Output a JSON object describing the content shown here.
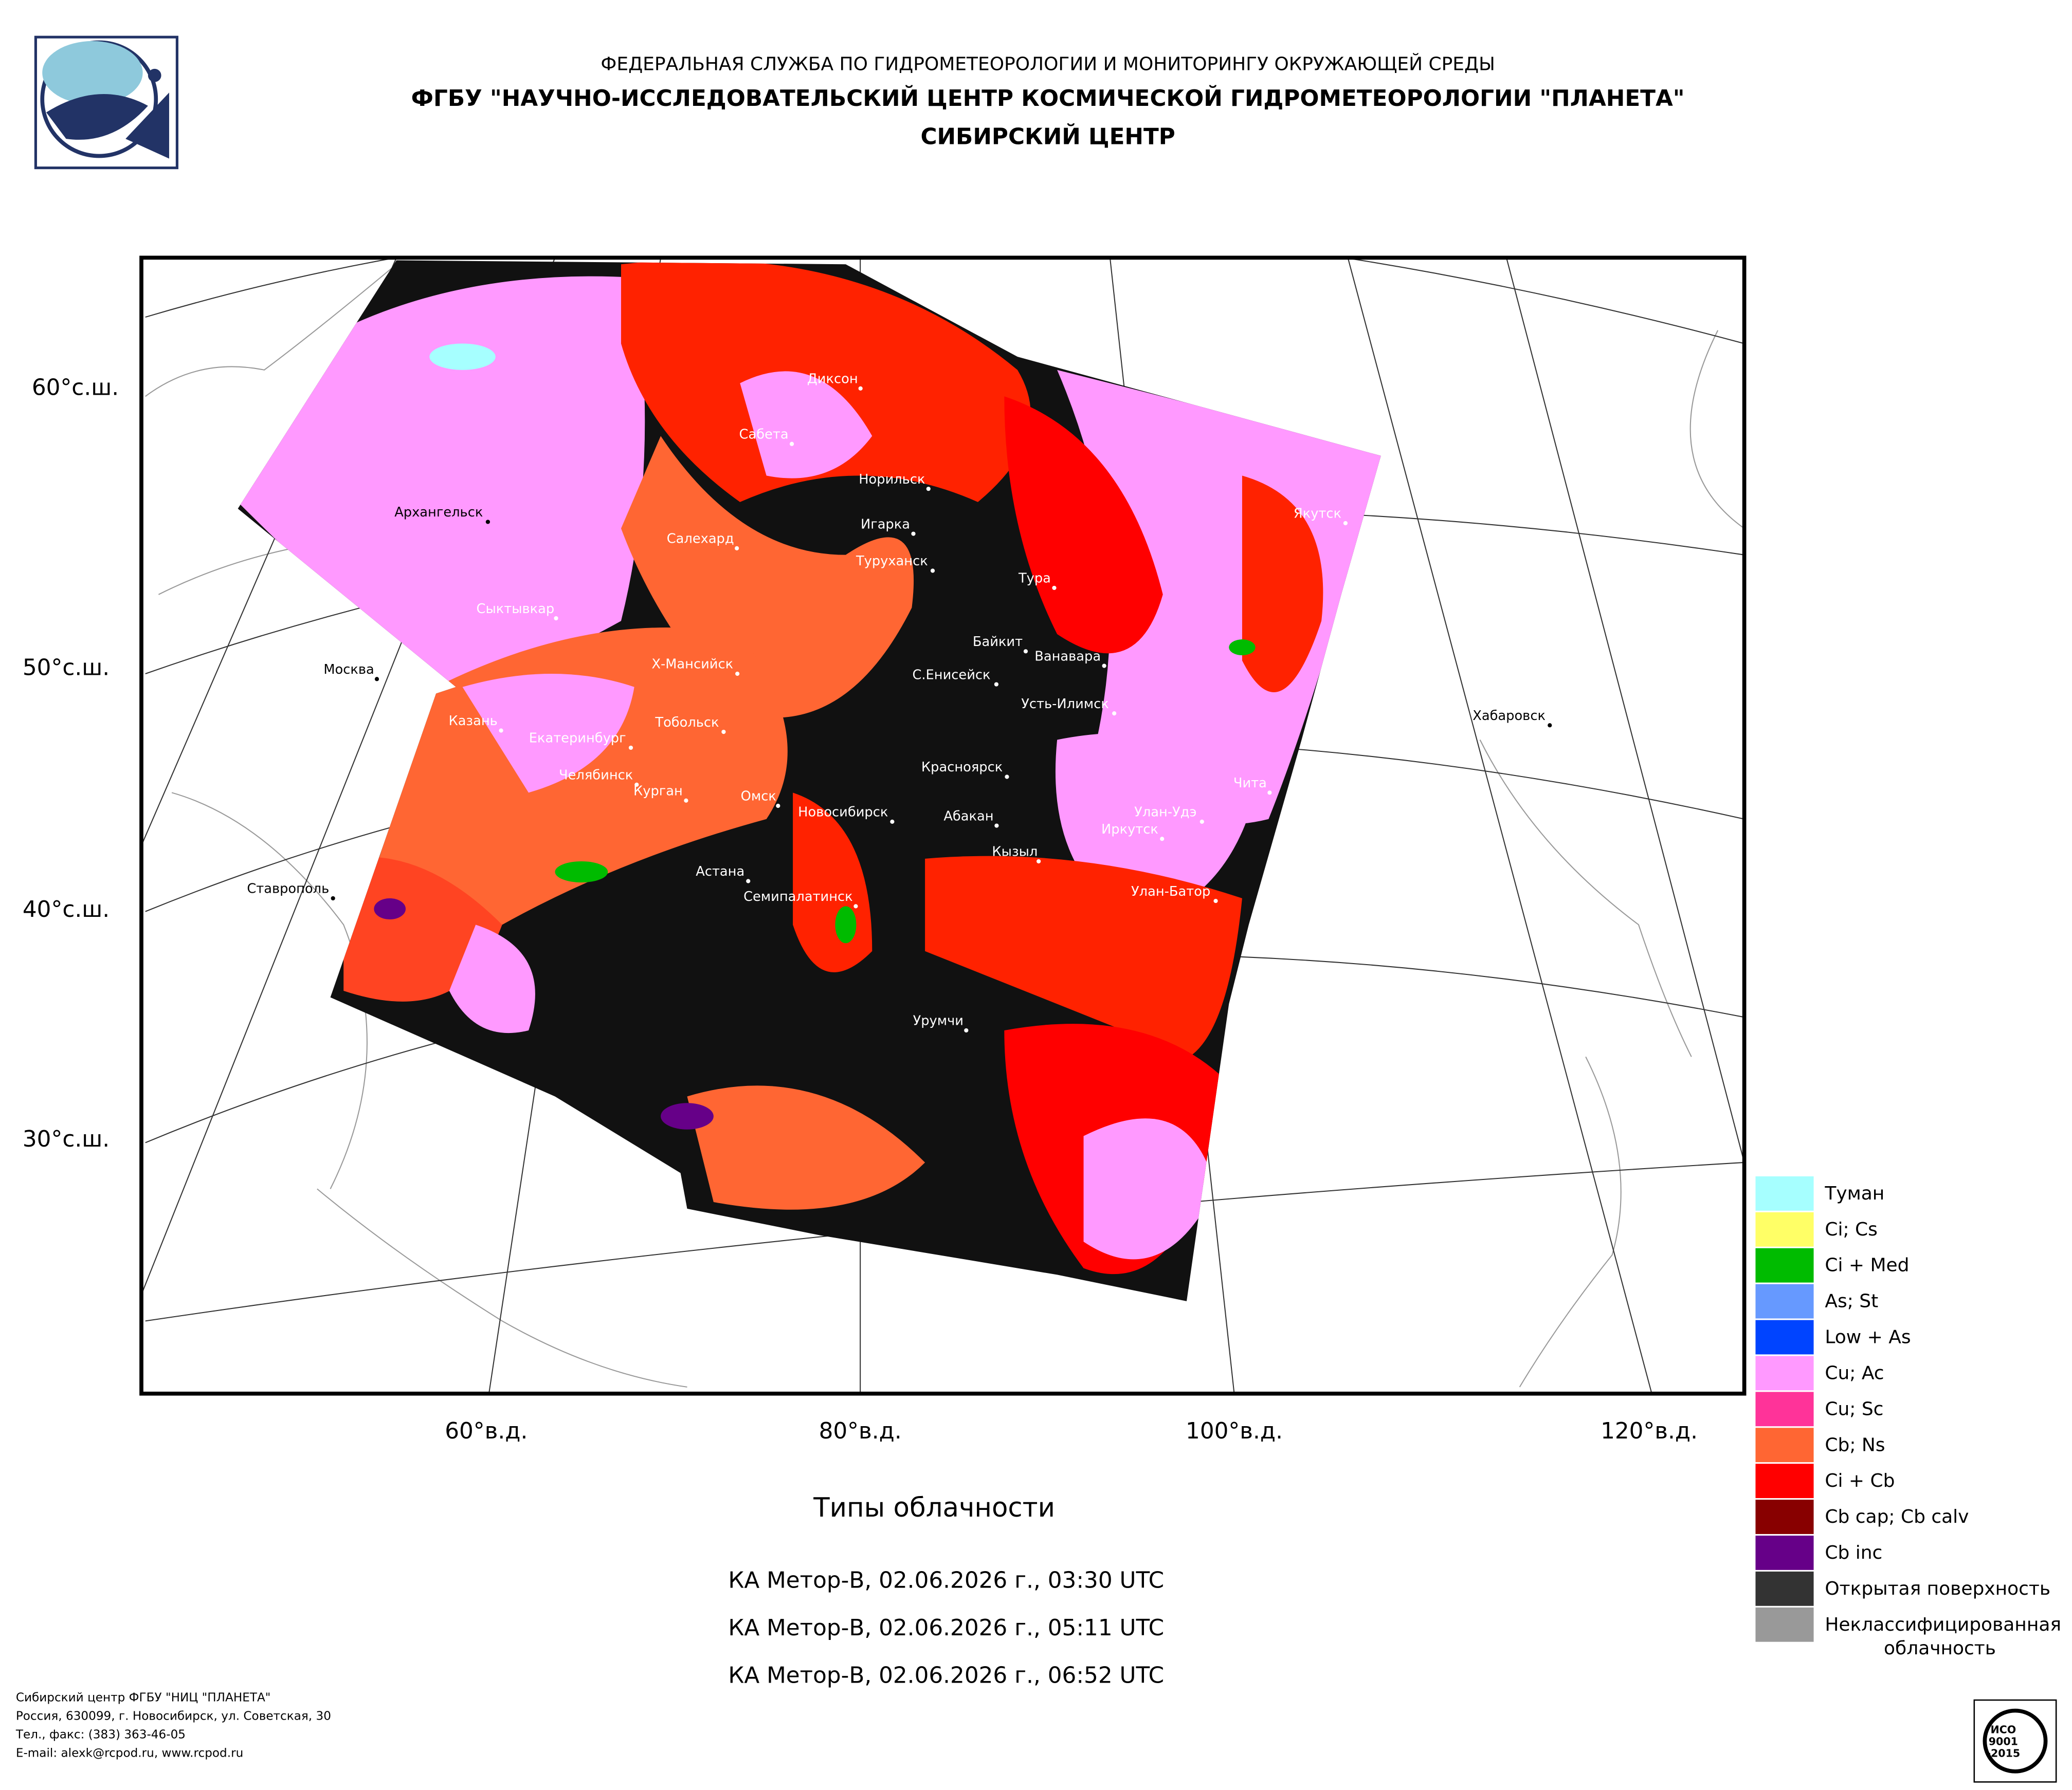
{
  "header": {
    "agency": "ФЕДЕРАЛЬНАЯ СЛУЖБА ПО ГИДРОМЕТЕОРОЛОГИИ И МОНИТОРИНГУ ОКРУЖАЮЩЕЙ СРЕДЫ",
    "institute": "ФГБУ \"НАУЧНО-ИССЛЕДОВАТЕЛЬСКИЙ ЦЕНТР КОСМИЧЕСКОЙ ГИДРОМЕТЕОРОЛОГИИ \"ПЛАНЕТА\"",
    "center": "СИБИРСКИЙ ЦЕНТР"
  },
  "map": {
    "lat_labels": [
      "60°с.ш.",
      "50°с.ш.",
      "40°с.ш.",
      "30°с.ш."
    ],
    "lon_labels": [
      "60°в.д.",
      "80°в.д.",
      "100°в.д.",
      "120°в.д."
    ],
    "cities": [
      "Диксон",
      "Сабета",
      "Норильск",
      "Архангельск",
      "Салехард",
      "Игарка",
      "Туруханск",
      "Тура",
      "Якутск",
      "Сыктывкар",
      "Байкит",
      "Ванавара",
      "Москва",
      "Х-Мансийск",
      "С.Енисейск",
      "Усть-Илимск",
      "Казань",
      "Тобольск",
      "Хабаровск",
      "Екатеринбург",
      "Челябинск",
      "Чита",
      "Курган",
      "Омск",
      "Новосибирск",
      "Красноярск",
      "Абакан",
      "Улан-Удэ",
      "Иркутск",
      "Кызыл",
      "Астана",
      "Ставрополь",
      "Семипалатинск",
      "Улан-Батор",
      "Урумчи"
    ]
  },
  "legend": [
    {
      "label": "Туман",
      "color": "#a6ffff"
    },
    {
      "label": "Ci; Cs",
      "color": "#ffff66"
    },
    {
      "label": "Ci + Med",
      "color": "#00bb00"
    },
    {
      "label": "As; St",
      "color": "#6699ff"
    },
    {
      "label": "Low + As",
      "color": "#0044ff"
    },
    {
      "label": "Cu; Ac",
      "color": "#ff99ff"
    },
    {
      "label": "Cu; Sc",
      "color": "#ff3399"
    },
    {
      "label": "Cb; Ns",
      "color": "#ff6633"
    },
    {
      "label": "Ci + Cb",
      "color": "#ff0000"
    },
    {
      "label": "Cb cap; Cb calv",
      "color": "#880000"
    },
    {
      "label": "Cb inc",
      "color": "#660088"
    },
    {
      "label": "Открытая поверхность",
      "color": "#333333"
    },
    {
      "label": [
        "Неклассифицированная",
        "облачность"
      ],
      "color": "#999999"
    }
  ],
  "caption": {
    "title": "Типы облачности",
    "passes": [
      "КА Метор-В, 02.06.2026 г., 03:30 UTC",
      "КА Метор-В, 02.06.2026 г., 05:11 UTC",
      "КА Метор-В, 02.06.2026 г., 06:52 UTC"
    ]
  },
  "footer": [
    "Сибирский центр ФГБУ \"НИЦ \"ПЛАНЕТА\"",
    "Россия, 630099, г. Новосибирск, ул. Советская, 30",
    "Тел., факс: (383) 363-46-05",
    "E-mail: alexk@rcpod.ru, www.rcpod.ru"
  ],
  "badge": [
    "ИСО",
    "9001",
    "-2015"
  ]
}
